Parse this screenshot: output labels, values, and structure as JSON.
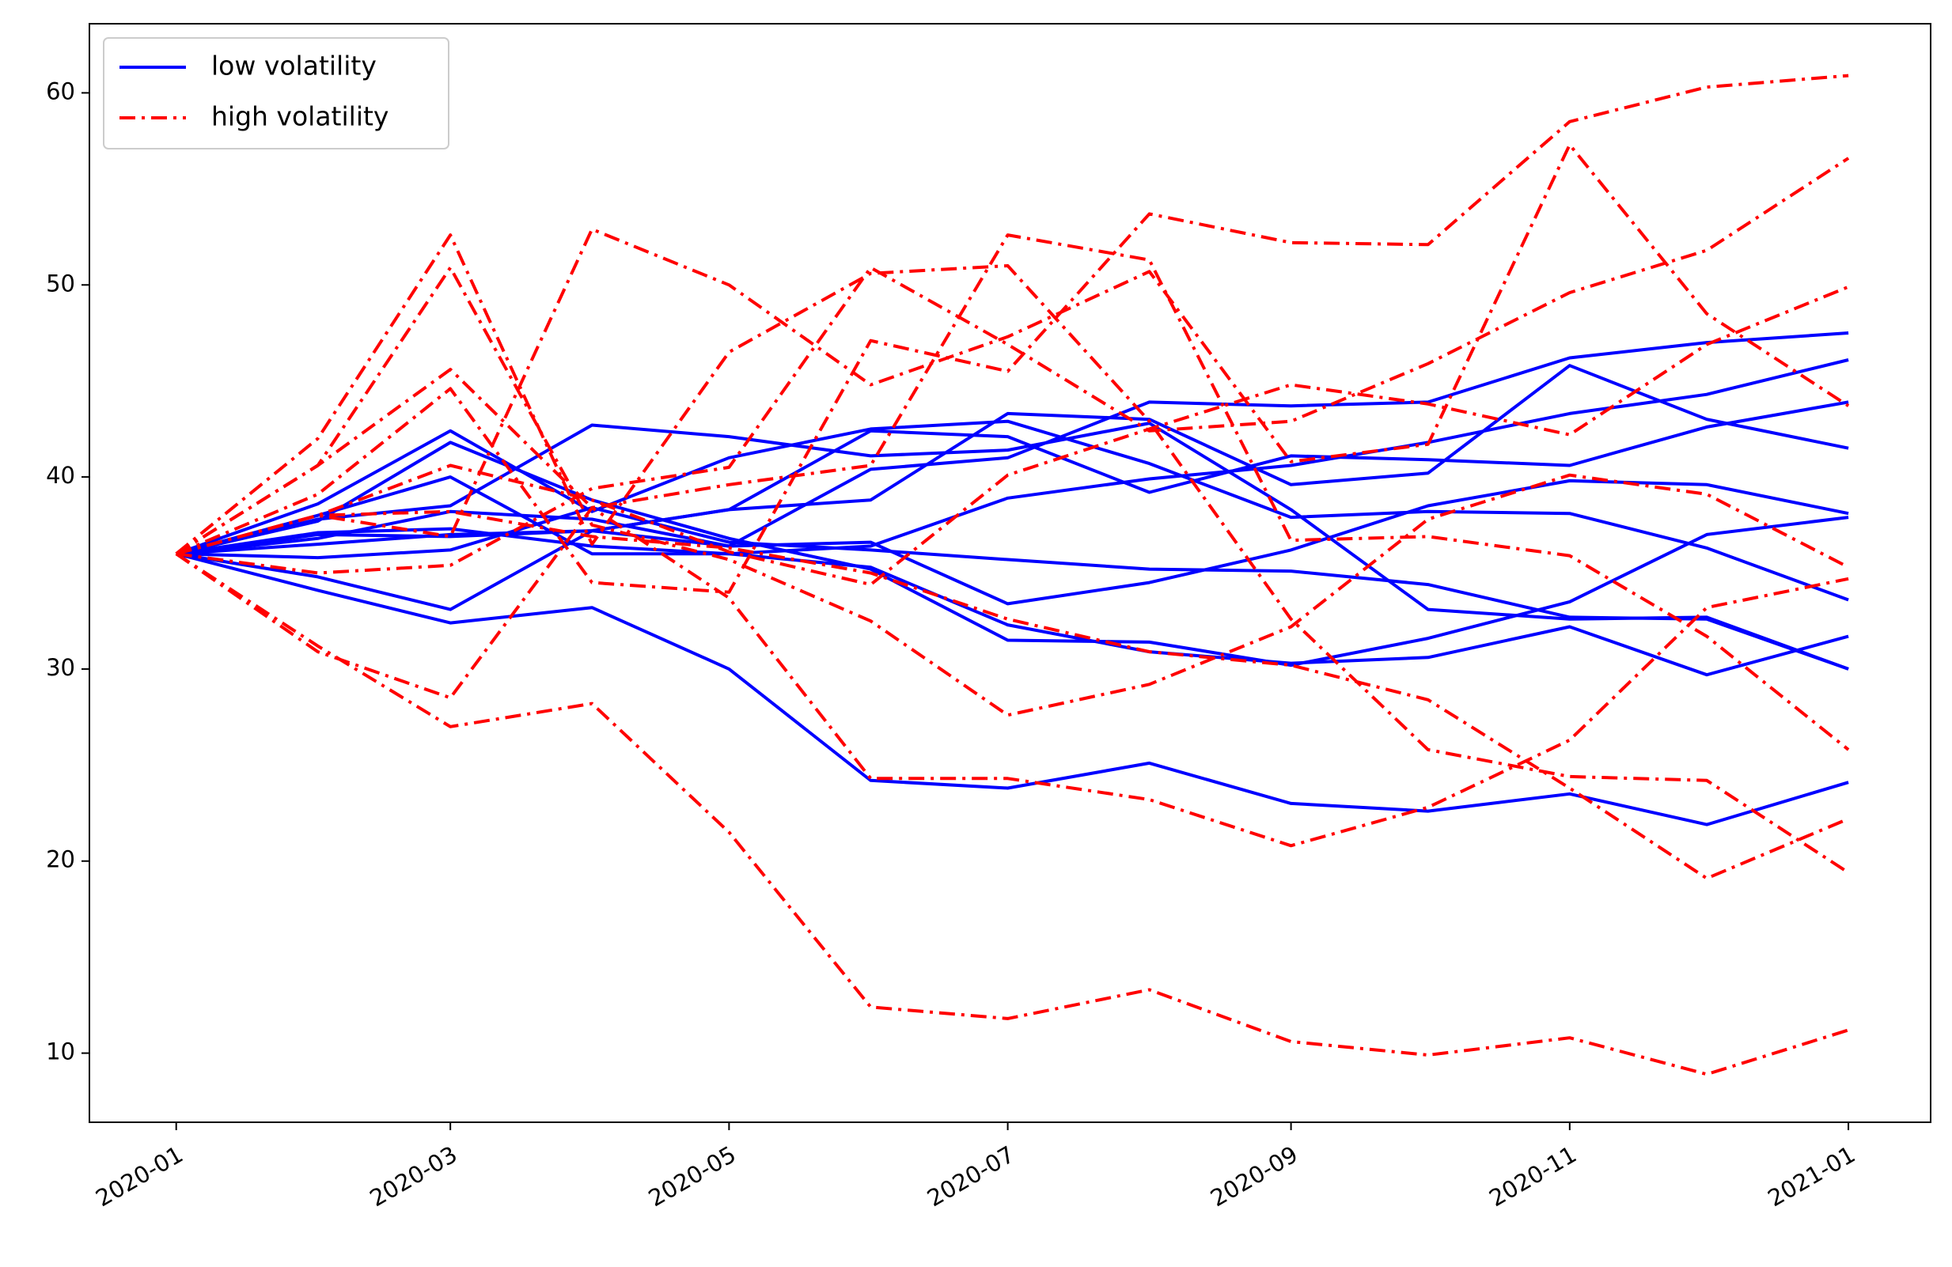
{
  "chart_data": {
    "type": "line",
    "title": "",
    "xlabel": "",
    "ylabel": "",
    "x": [
      "2020-01-01",
      "2020-02-01",
      "2020-03-01",
      "2020-04-01",
      "2020-05-01",
      "2020-06-01",
      "2020-07-01",
      "2020-08-01",
      "2020-09-01",
      "2020-10-01",
      "2020-11-01",
      "2020-12-01",
      "2021-01-01"
    ],
    "xticks": [
      "2020-01",
      "2020-03",
      "2020-05",
      "2020-07",
      "2020-09",
      "2020-11",
      "2021-01"
    ],
    "xtick_dates": [
      "2020-01-01",
      "2020-03-01",
      "2020-05-01",
      "2020-07-01",
      "2020-09-01",
      "2020-11-01",
      "2021-01-01"
    ],
    "xlim": [
      "2019-12-13",
      "2021-01-19"
    ],
    "yticks": [
      "10",
      "20",
      "30",
      "40",
      "50",
      "60"
    ],
    "ylim": [
      6.4,
      63.6
    ],
    "grid": false,
    "legend": {
      "position": "top-left",
      "entries": [
        {
          "label": "low volatility",
          "color": "#0000ff",
          "style": "solid"
        },
        {
          "label": "high volatility",
          "color": "#ff0000",
          "style": "dashdot"
        }
      ]
    },
    "groups": [
      {
        "name": "low volatility",
        "color": "#0000ff",
        "style": "solid",
        "series": [
          [
            36.0,
            38.0,
            40.0,
            36.0,
            36.0,
            36.4,
            38.9,
            39.9,
            40.6,
            41.8,
            43.3,
            44.3,
            46.1
          ],
          [
            36.0,
            36.5,
            37.0,
            37.2,
            38.3,
            38.8,
            43.3,
            43.0,
            39.6,
            40.2,
            45.8,
            43.0,
            41.5
          ],
          [
            36.0,
            35.8,
            36.2,
            38.4,
            36.6,
            36.2,
            35.7,
            35.2,
            35.1,
            34.4,
            32.7,
            32.6,
            30.0
          ],
          [
            36.0,
            34.8,
            33.1,
            37.2,
            36.4,
            36.6,
            33.4,
            34.5,
            36.2,
            38.5,
            39.8,
            39.6,
            38.1
          ],
          [
            36.0,
            37.7,
            41.8,
            38.8,
            36.8,
            35.2,
            31.5,
            31.4,
            30.2,
            31.6,
            33.5,
            37.0,
            37.9
          ],
          [
            36.0,
            34.1,
            32.4,
            33.2,
            30.0,
            24.2,
            23.8,
            25.1,
            23.0,
            22.6,
            23.5,
            21.9,
            24.1
          ],
          [
            36.0,
            37.0,
            36.9,
            37.2,
            38.3,
            42.4,
            42.1,
            39.2,
            41.1,
            40.9,
            40.6,
            42.6,
            43.9
          ],
          [
            36.0,
            36.8,
            38.2,
            37.8,
            36.4,
            40.4,
            41.0,
            43.9,
            43.7,
            43.9,
            46.2,
            47.0,
            47.5
          ],
          [
            36.0,
            37.1,
            37.3,
            36.4,
            36.0,
            35.3,
            32.3,
            30.9,
            30.3,
            30.6,
            32.2,
            29.7,
            31.7
          ],
          [
            36.0,
            38.6,
            42.4,
            38.2,
            41.0,
            42.5,
            42.9,
            40.7,
            37.9,
            38.2,
            38.1,
            36.3,
            33.6
          ],
          [
            36.0,
            37.8,
            38.5,
            42.7,
            42.1,
            41.1,
            41.4,
            42.8,
            38.3,
            33.1,
            32.6,
            32.7,
            30.0
          ]
        ]
      },
      {
        "name": "high volatility",
        "color": "#ff0000",
        "style": "dashdot",
        "series": [
          [
            36.0,
            42.0,
            52.6,
            36.5,
            46.5,
            50.6,
            51.0,
            42.9,
            32.6,
            25.8,
            24.4,
            24.2,
            19.4
          ],
          [
            36.0,
            40.6,
            45.6,
            38.4,
            39.6,
            40.6,
            52.6,
            51.3,
            36.7,
            36.9,
            35.9,
            31.7,
            25.8
          ],
          [
            36.0,
            38.0,
            36.9,
            52.9,
            50.0,
            44.8,
            47.3,
            50.7,
            40.8,
            41.7,
            57.3,
            48.5,
            43.7
          ],
          [
            36.0,
            30.9,
            28.5,
            38.4,
            33.7,
            24.3,
            24.3,
            23.2,
            20.8,
            22.8,
            26.3,
            33.2,
            34.7
          ],
          [
            36.0,
            40.6,
            50.9,
            37.5,
            35.7,
            32.5,
            27.6,
            29.2,
            32.2,
            37.8,
            40.1,
            39.1,
            35.3
          ],
          [
            36.0,
            35.0,
            35.4,
            39.4,
            40.5,
            50.9,
            46.9,
            42.4,
            42.9,
            45.9,
            49.6,
            51.8,
            56.6
          ],
          [
            36.0,
            38.0,
            40.6,
            38.8,
            36.1,
            34.4,
            40.1,
            42.5,
            44.8,
            43.8,
            42.2,
            46.9,
            49.9
          ],
          [
            36.0,
            38.0,
            38.2,
            36.9,
            36.3,
            35.0,
            32.6,
            30.9,
            30.2,
            28.4,
            23.8,
            19.1,
            22.2
          ],
          [
            36.0,
            39.1,
            44.6,
            34.5,
            34.0,
            47.1,
            45.5,
            53.7,
            52.2,
            52.1,
            58.5,
            60.3,
            60.9
          ],
          [
            36.0,
            31.2,
            27.0,
            28.2,
            21.5,
            12.4,
            11.8,
            13.3,
            10.6,
            9.9,
            10.8,
            8.9,
            11.2
          ]
        ]
      }
    ]
  }
}
